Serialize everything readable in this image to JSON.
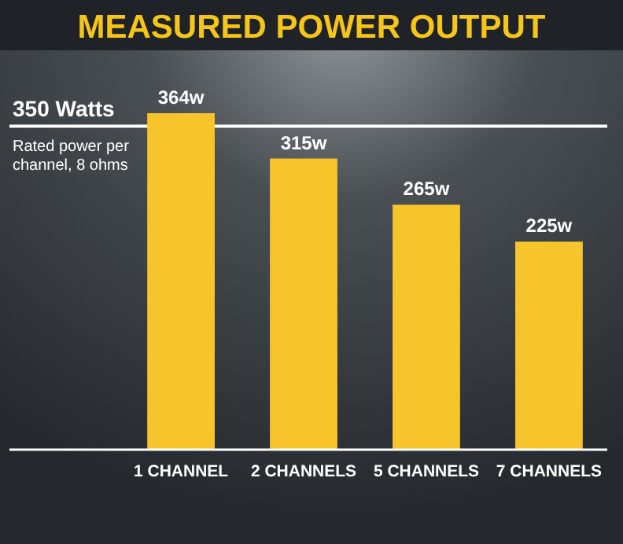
{
  "chart_data": {
    "type": "bar",
    "title": "MEASURED POWER OUTPUT",
    "categories": [
      "1 CHANNEL",
      "2 CHANNELS",
      "5 CHANNELS",
      "7 CHANNELS"
    ],
    "values": [
      364,
      315,
      265,
      225
    ],
    "color": "#f7c42b",
    "value_labels": [
      "364w",
      "315w",
      "265w",
      "225w"
    ],
    "tick_labels": "x",
    "ref_lines": [
      {
        "axis": "y",
        "value": 350,
        "label": "350 Watts",
        "color": "#ffffff"
      }
    ],
    "annotations": [
      "Rated power per channel, 8 ohms"
    ]
  }
}
